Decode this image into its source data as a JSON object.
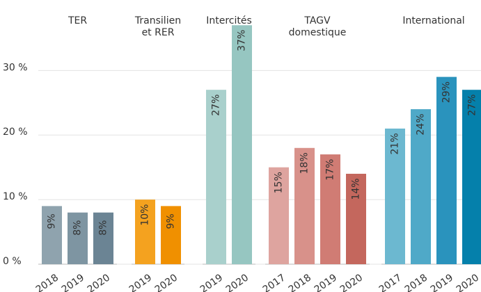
{
  "chart_data": {
    "type": "bar",
    "ylim": [
      0,
      38
    ],
    "yticks": [
      {
        "value": 0,
        "label": "0 %"
      },
      {
        "value": 10,
        "label": "10 %"
      },
      {
        "value": 20,
        "label": "20 %"
      },
      {
        "value": 30,
        "label": "30 %"
      }
    ],
    "grid": true,
    "groups": [
      {
        "name": [
          "TER"
        ],
        "categories": [
          "2018",
          "2019",
          "2020"
        ],
        "values": [
          9,
          8,
          8
        ],
        "value_labels": [
          "9%",
          "8%",
          "8%"
        ],
        "colors": [
          "#8fa3ae",
          "#7e95a2",
          "#6b8494"
        ]
      },
      {
        "name": [
          "Transilien",
          "et RER"
        ],
        "categories": [
          "2019",
          "2020"
        ],
        "values": [
          10,
          9
        ],
        "value_labels": [
          "10%",
          "9%"
        ],
        "colors": [
          "#f4a21f",
          "#f09000"
        ]
      },
      {
        "name": [
          "Intercités"
        ],
        "categories": [
          "2019",
          "2020"
        ],
        "values": [
          27,
          37
        ],
        "value_labels": [
          "27%",
          "37%"
        ],
        "colors": [
          "#a9d0cc",
          "#96c6c1"
        ]
      },
      {
        "name": [
          "TAGV",
          "domestique"
        ],
        "categories": [
          "2017",
          "2018",
          "2019",
          "2020"
        ],
        "values": [
          15,
          18,
          17,
          14
        ],
        "value_labels": [
          "15%",
          "18%",
          "17%",
          "14%"
        ],
        "colors": [
          "#dea49f",
          "#d8918a",
          "#d07c74",
          "#c4675d"
        ]
      },
      {
        "name": [
          "International"
        ],
        "categories": [
          "2017",
          "2018",
          "2019",
          "2020"
        ],
        "values": [
          21,
          24,
          29,
          27
        ],
        "value_labels": [
          "21%",
          "24%",
          "29%",
          "27%"
        ],
        "colors": [
          "#6cb8d0",
          "#4fa9c8",
          "#2a93bd",
          "#0580ab"
        ]
      }
    ]
  }
}
